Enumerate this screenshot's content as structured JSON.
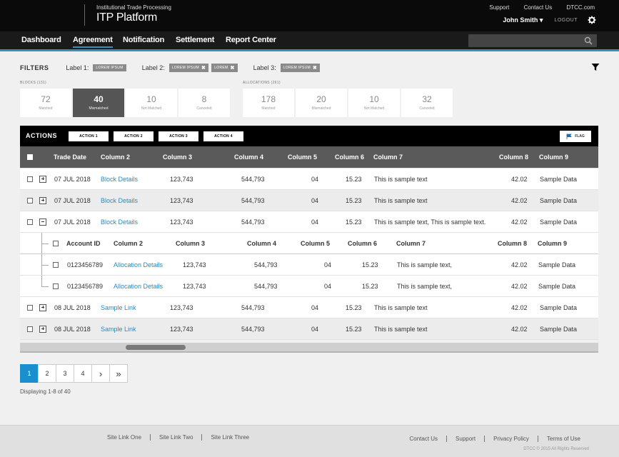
{
  "header": {
    "subtitle": "Institutional Trade Processing",
    "title": "ITP Platform",
    "links": [
      "Support",
      "Contact Us",
      "DTCC.com"
    ],
    "user": "John Smith",
    "logout": "LOGOUT"
  },
  "nav": {
    "items": [
      "Dashboard",
      "Agreement",
      "Notification",
      "Settlement",
      "Report Center"
    ],
    "active": "Agreement",
    "search_placeholder": ""
  },
  "filters": {
    "title": "FILTERS",
    "label1": "Label 1:",
    "label1_chips": [
      "LOREM IPSUM"
    ],
    "label2": "Label 2:",
    "label2_chips": [
      "LOREM IPSUM",
      "LOREM"
    ],
    "label3": "Label 3:",
    "label3_chips": [
      "LOREM IPSUM"
    ]
  },
  "blocks": {
    "label": "BLOCKS (131)",
    "stats": [
      {
        "num": "72",
        "lbl": "Matched"
      },
      {
        "num": "40",
        "lbl": "Mismatched"
      },
      {
        "num": "10",
        "lbl": "Not Matched"
      },
      {
        "num": "8",
        "lbl": "Canceled"
      }
    ]
  },
  "allocations": {
    "label": "ALLOCATIONS (261)",
    "stats": [
      {
        "num": "178",
        "lbl": "Matched"
      },
      {
        "num": "20",
        "lbl": "Mismatched"
      },
      {
        "num": "10",
        "lbl": "Not Matched"
      },
      {
        "num": "32",
        "lbl": "Canceled"
      }
    ]
  },
  "actions": {
    "title": "ACTIONS",
    "buttons": [
      "ACTION 1",
      "ACTION 2",
      "ACTION 3",
      "ACTION 4"
    ],
    "flag": "FLAG"
  },
  "table": {
    "headers": [
      "Trade Date",
      "Column 2",
      "Column 3",
      "Column 4",
      "Column 5",
      "Column 6",
      "Column 7",
      "Column 8",
      "Column 9"
    ],
    "rows": [
      {
        "date": "07 JUL 2018",
        "c2": "Block Details",
        "c3": "123,743",
        "c4": "544,793",
        "c5": "04",
        "c6": "15.23",
        "c7": "This is sample text",
        "c8": "42.02",
        "c9": "Sample Data"
      },
      {
        "date": "07 JUL 2018",
        "c2": "Block Details",
        "c3": "123,743",
        "c4": "544,793",
        "c5": "04",
        "c6": "15.23",
        "c7": "This is sample text",
        "c8": "42.02",
        "c9": "Sample Data"
      },
      {
        "date": "07 JUL 2018",
        "c2": "Block Details",
        "c3": "123,743",
        "c4": "544,793",
        "c5": "04",
        "c6": "15.23",
        "c7": "This is sample text, This is sample text.",
        "c8": "42.02",
        "c9": "Sample Data"
      },
      {
        "date": "08 JUL 2018",
        "c2": "Sample Link",
        "c3": "123,743",
        "c4": "544,793",
        "c5": "04",
        "c6": "15.23",
        "c7": "This is sample text",
        "c8": "42.02",
        "c9": "Sample Data"
      },
      {
        "date": "08 JUL 2018",
        "c2": "Sample Link",
        "c3": "123,743",
        "c4": "544,793",
        "c5": "04",
        "c6": "15.23",
        "c7": "This is sample text",
        "c8": "42.02",
        "c9": "Sample Data"
      }
    ],
    "sub_headers": [
      "Account ID",
      "Column 2",
      "Column 3",
      "Column 4",
      "Column 5",
      "Column 6",
      "Column 7",
      "Column 8",
      "Column 9"
    ],
    "sub_rows": [
      {
        "id": "0123456789",
        "c2": "Allocation Details",
        "c3": "123,743",
        "c4": "544,793",
        "c5": "04",
        "c6": "15.23",
        "c7": "This is sample text,",
        "c8": "42.02",
        "c9": "Sample Data"
      },
      {
        "id": "0123456789",
        "c2": "Allocation Details",
        "c3": "123,743",
        "c4": "544,793",
        "c5": "04",
        "c6": "15.23",
        "c7": "This is sample text,",
        "c8": "42.02",
        "c9": "Sample Data"
      }
    ]
  },
  "pagination": {
    "pages": [
      "1",
      "2",
      "3",
      "4"
    ],
    "next": "›",
    "last": "»",
    "displaying": "Displaying 1-8 of 40"
  },
  "footer": {
    "left_links": [
      "Site Link One",
      "Site Link Two",
      "Site Link Three"
    ],
    "right_links": [
      "Contact Us",
      "Support",
      "Privacy Policy",
      "Terms of Use"
    ],
    "copyright": "DTCC © 2015 All Rights Reserved"
  },
  "colors": {
    "accent": "#1a8fd0",
    "nav_underline": "#3a8fb8",
    "header": "#0a0a0a"
  }
}
